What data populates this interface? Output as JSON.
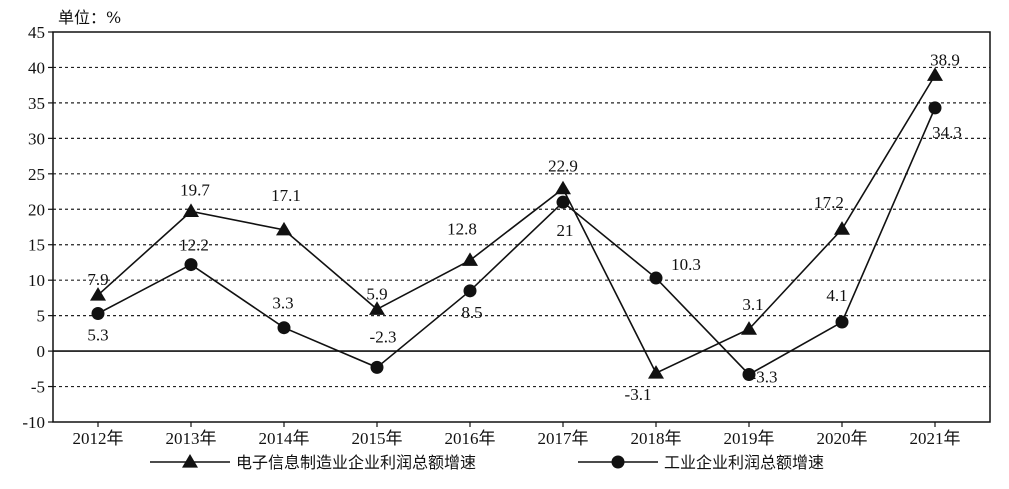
{
  "chart_data": {
    "type": "line",
    "unit_label": "单位：%",
    "categories": [
      "2012年",
      "2013年",
      "2014年",
      "2015年",
      "2016年",
      "2017年",
      "2018年",
      "2019年",
      "2020年",
      "2021年"
    ],
    "ylim": [
      -10,
      45
    ],
    "yticks": [
      -10,
      -5,
      0,
      5,
      10,
      15,
      20,
      25,
      30,
      35,
      40,
      45
    ],
    "ytick_labels": [
      "-10",
      "-5",
      "0",
      "5",
      "10",
      "15",
      "20",
      "25",
      "30",
      "35",
      "40",
      "45"
    ],
    "grid": "horizontal-dashed",
    "legend_position": "bottom",
    "series": [
      {
        "name": "电子信息制造业企业利润总额增速",
        "marker": "triangle",
        "values": [
          7.9,
          19.7,
          17.1,
          5.9,
          12.8,
          22.9,
          -3.1,
          3.1,
          17.2,
          38.9
        ],
        "labels": [
          "7.9",
          "19.7",
          "17.1",
          "5.9",
          "12.8",
          "22.9",
          "-3.1",
          "3.1",
          "17.2",
          "38.9"
        ]
      },
      {
        "name": "工业企业利润总额增速",
        "marker": "circle",
        "values": [
          5.3,
          12.2,
          3.3,
          -2.3,
          8.5,
          21,
          10.3,
          -3.3,
          4.1,
          34.3
        ],
        "labels": [
          "5.3",
          "12.2",
          "3.3",
          "-2.3",
          "8.5",
          "21",
          "10.3",
          "-3.3",
          "4.1",
          "34.3"
        ]
      }
    ]
  }
}
